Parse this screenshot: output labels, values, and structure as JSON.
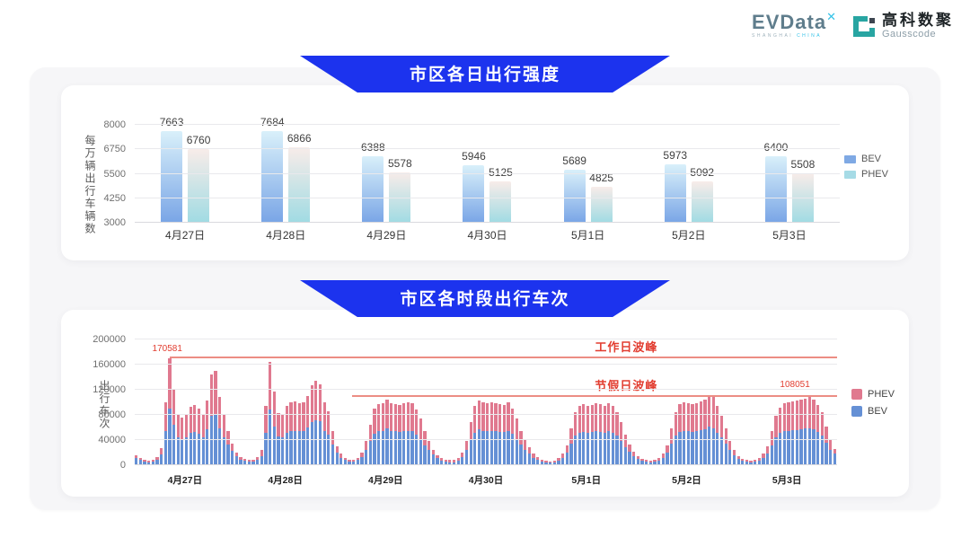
{
  "logo": {
    "evdata_text": "EVData",
    "evdata_sup": "✕",
    "evdata_sub_1": "SHANGHAI ",
    "evdata_sub_2": "CHINA",
    "gausscode_cn": "高科数聚",
    "gausscode_en": "Gausscode"
  },
  "colors": {
    "banner_blue": "#1c33ee",
    "bev_grad_top": "#d9f0fa",
    "bev_grad_bottom": "#79a5e6",
    "phev_grad_top": "#f8ece9",
    "phev_grad_bottom": "#a0dbe3",
    "legend1_bev": "#7fa9e4",
    "legend1_phev": "#a6dbe6",
    "bev2": "#6590d5",
    "phev2": "#e0798f",
    "annotation_text": "#e23d30",
    "annotation_line": "#ec8d84"
  },
  "chart_data": [
    {
      "type": "bar",
      "title": "市区各日出行强度",
      "ylabel": "每万辆出行车辆数",
      "categories": [
        "4月27日",
        "4月28日",
        "4月29日",
        "4月30日",
        "5月1日",
        "5月2日",
        "5月3日"
      ],
      "series": [
        {
          "name": "BEV",
          "values": [
            7663,
            7684,
            6388,
            5946,
            5689,
            5973,
            6400
          ]
        },
        {
          "name": "PHEV",
          "values": [
            6760,
            6866,
            5578,
            5125,
            4825,
            5092,
            5508
          ]
        }
      ],
      "ylim": [
        3000,
        8000
      ],
      "yticks": [
        3000,
        4250,
        5500,
        6750,
        8000
      ],
      "grid": true,
      "legend_position": "right"
    },
    {
      "type": "bar",
      "stacked": true,
      "title": "市区各时段出行车次",
      "ylabel": "出行车次",
      "categories": [
        "4月27日",
        "4月28日",
        "4月29日",
        "4月30日",
        "5月1日",
        "5月2日",
        "5月3日"
      ],
      "x_unit": "hour-of-day (24 bars per date)",
      "ylim": [
        0,
        200000
      ],
      "yticks": [
        0,
        40000,
        80000,
        120000,
        160000,
        200000
      ],
      "grid": true,
      "legend_position": "right",
      "legend_order": [
        "PHEV",
        "BEV"
      ],
      "series": [
        {
          "name": "BEV",
          "days": [
            [
              11000,
              8000,
              6000,
              5000,
              6000,
              9000,
              17000,
              55000,
              90500,
              64000,
              44000,
              42000,
              44000,
              51000,
              53000,
              50000,
              45000,
              57000,
              78000,
              80000,
              59000,
              44000,
              33000,
              23000
            ],
            [
              14000,
              9000,
              7000,
              6000,
              6000,
              9000,
              15000,
              52000,
              88000,
              62000,
              46000,
              45000,
              52000,
              55000,
              55000,
              54000,
              55000,
              60000,
              69000,
              72000,
              70000,
              55000,
              48000,
              33000
            ],
            [
              20000,
              12000,
              8000,
              6000,
              6000,
              8000,
              13000,
              24000,
              38000,
              50000,
              54000,
              54000,
              58000,
              55000,
              54000,
              53000,
              54000,
              55000,
              54000,
              49000,
              42000,
              32000,
              24000,
              17000
            ],
            [
              11000,
              7000,
              6000,
              5000,
              5000,
              7000,
              13000,
              24000,
              40000,
              52000,
              57000,
              55000,
              54000,
              55000,
              54000,
              53000,
              53000,
              55000,
              50000,
              42000,
              33000,
              25000,
              18000,
              12000
            ],
            [
              9000,
              6000,
              5000,
              4000,
              5000,
              7000,
              12000,
              20000,
              34000,
              47000,
              52000,
              53000,
              52000,
              53000,
              54000,
              53000,
              52000,
              54000,
              52000,
              47000,
              39000,
              29000,
              21000,
              14000
            ],
            [
              10000,
              7000,
              6000,
              5000,
              6000,
              7000,
              12000,
              20000,
              34000,
              47000,
              53000,
              55000,
              54000,
              53000,
              54000,
              56000,
              57000,
              61000,
              59000,
              52000,
              44000,
              34000,
              24000,
              16000
            ],
            [
              10000,
              7000,
              6000,
              5000,
              6000,
              7000,
              12000,
              19000,
              31000,
              44000,
              51000,
              54000,
              55000,
              56000,
              56000,
              57000,
              58000,
              59000,
              57000,
              53000,
              47000,
              36000,
              25000,
              18000
            ]
          ]
        },
        {
          "name": "PHEV",
          "days": [
            [
              5000,
              3000,
              2000,
              2000,
              2000,
              4000,
              10000,
              45000,
              80081,
              56000,
              36000,
              34000,
              36000,
              42000,
              43000,
              40000,
              37000,
              46000,
              67000,
              70000,
              50000,
              36000,
              22000,
              12000
            ],
            [
              6000,
              4000,
              3000,
              2000,
              2000,
              4000,
              9000,
              43000,
              76000,
              55000,
              37000,
              36000,
              43000,
              45000,
              46000,
              44000,
              45000,
              50000,
              58000,
              62000,
              59000,
              45000,
              38000,
              22000
            ],
            [
              10000,
              6000,
              4000,
              3000,
              3000,
              4000,
              7000,
              14000,
              27000,
              40000,
              43000,
              44000,
              47000,
              44000,
              43000,
              43000,
              44000,
              45000,
              44000,
              39000,
              33000,
              23000,
              14000,
              8000
            ],
            [
              5000,
              4000,
              3000,
              3000,
              3000,
              4000,
              7000,
              14000,
              28000,
              43000,
              46000,
              45000,
              44000,
              45000,
              45000,
              44000,
              43000,
              45000,
              40000,
              32000,
              22000,
              15000,
              10000,
              6000
            ],
            [
              4000,
              3000,
              2000,
              2000,
              2000,
              4000,
              6000,
              12000,
              24000,
              37000,
              43000,
              44000,
              42000,
              43000,
              44000,
              44000,
              43000,
              44000,
              43000,
              37000,
              29000,
              19000,
              12000,
              7000
            ],
            [
              4000,
              3000,
              2000,
              2000,
              2000,
              4000,
              6000,
              12000,
              24000,
              38000,
              44000,
              45000,
              44000,
              44000,
              45000,
              46000,
              48000,
              51000,
              49000,
              42000,
              34000,
              24000,
              14000,
              8000
            ],
            [
              5000,
              3000,
              2000,
              2000,
              2000,
              4000,
              6000,
              11000,
              23000,
              34000,
              41000,
              44000,
              45000,
              46000,
              47000,
              47000,
              48000,
              49051,
              47000,
              43000,
              37000,
              26000,
              15000,
              8000
            ]
          ]
        }
      ],
      "annotations": {
        "workday": {
          "label": "工作日波峰",
          "value": 170581,
          "value_label": "170581"
        },
        "holiday": {
          "label": "节假日波峰",
          "value": 108051,
          "value_label": "108051"
        }
      }
    }
  ]
}
